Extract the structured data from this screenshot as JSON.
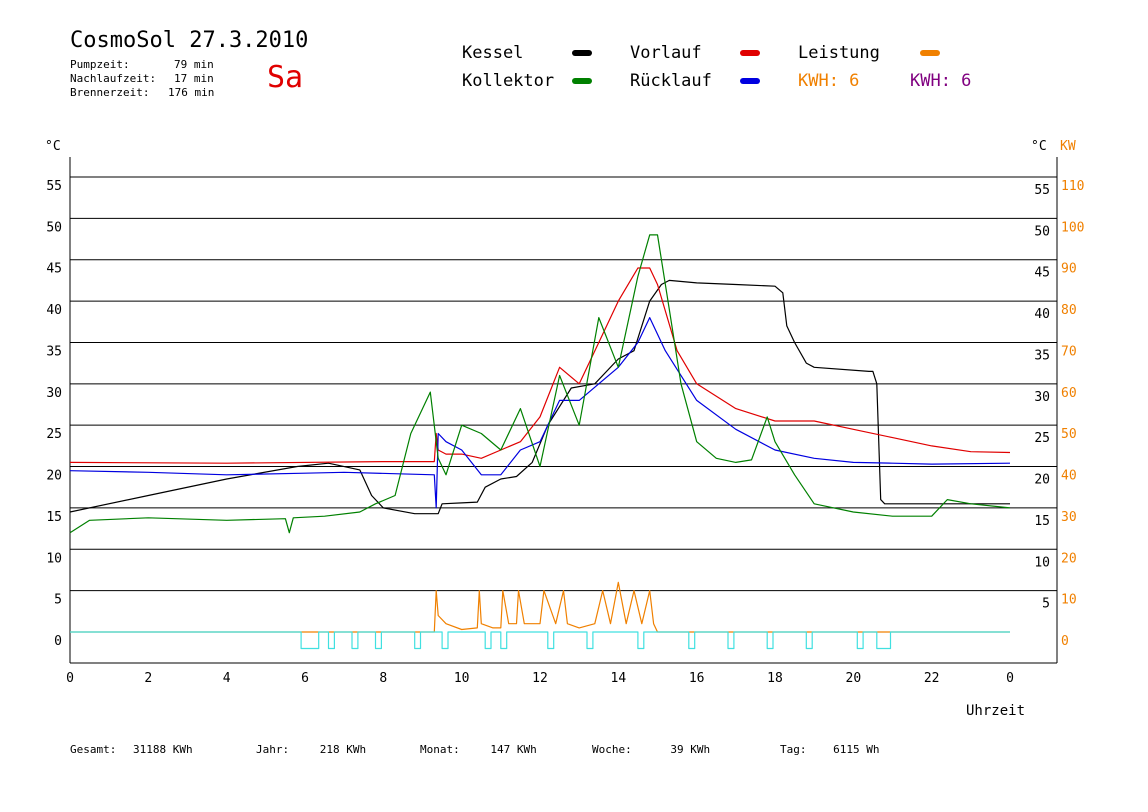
{
  "header": {
    "title": "CosmoSol 27.3.2010",
    "day": "Sa",
    "day_color": "#e00000",
    "meta": [
      {
        "label": "Pumpzeit:",
        "value": "79 min"
      },
      {
        "label": "Nachlaufzeit:",
        "value": "17 min"
      },
      {
        "label": "Brennerzeit:",
        "value": "176 min"
      }
    ]
  },
  "legend": {
    "kessel": {
      "label": "Kessel",
      "color": "#000000"
    },
    "vorlauf": {
      "label": "Vorlauf",
      "color": "#e00000"
    },
    "leistung": {
      "label": "Leistung",
      "color": "#f08000"
    },
    "kollektor": {
      "label": "Kollektor",
      "color": "#008000"
    },
    "ruecklauf": {
      "label": "Rücklauf",
      "color": "#0000e0"
    },
    "kwh_orange": {
      "label": "KWH: 6",
      "color": "#f08000"
    },
    "kwh_purple": {
      "label": "KWH: 6",
      "color": "#800080"
    }
  },
  "footer": [
    {
      "label": "Gesamt:",
      "value": "31188 KWh"
    },
    {
      "label": "Jahr:",
      "value": "218 KWh"
    },
    {
      "label": "Monat:",
      "value": "147 KWh"
    },
    {
      "label": "Woche:",
      "value": "39 KWh"
    },
    {
      "label": "Tag:",
      "value": "6115 Wh"
    }
  ],
  "chart_data": {
    "type": "line",
    "xlabel": "Uhrzeit",
    "y_left_unit": "°C",
    "y_right_unit_temp": "°C",
    "y_right_unit_power": "KW",
    "xlim": [
      0,
      24
    ],
    "ylim": [
      0,
      55
    ],
    "power_lim": [
      0,
      110
    ],
    "x_ticks": [
      "0",
      "2",
      "4",
      "6",
      "8",
      "10",
      "12",
      "14",
      "16",
      "18",
      "20",
      "22",
      "0"
    ],
    "y_ticks": [
      "0",
      "5",
      "10",
      "15",
      "20",
      "25",
      "30",
      "35",
      "40",
      "45",
      "50",
      "55"
    ],
    "y_right_ticks": [
      "",
      "5",
      "10",
      "15",
      "20",
      "25",
      "30",
      "35",
      "40",
      "45",
      "50",
      "55"
    ],
    "power_ticks": [
      "0",
      "10",
      "20",
      "30",
      "40",
      "50",
      "60",
      "70",
      "80",
      "90",
      "100",
      "110"
    ],
    "grid": true,
    "series": [
      {
        "name": "Kessel",
        "color": "#000000",
        "x": [
          0,
          2,
          4,
          5.8,
          6.6,
          7.4,
          7.7,
          8.0,
          8.8,
          9.4,
          9.5,
          10.0,
          10.4,
          10.6,
          11.0,
          11.4,
          11.8,
          12.2,
          12.8,
          13.4,
          14.0,
          14.4,
          14.8,
          15.1,
          15.3,
          16.0,
          17.0,
          18.0,
          18.2,
          18.3,
          18.5,
          18.8,
          19.0,
          20.4,
          20.5,
          20.6,
          20.7,
          20.8,
          21.0,
          22.0,
          24.0
        ],
        "y": [
          14.5,
          16.5,
          18.5,
          20,
          20.4,
          19.6,
          16.5,
          15,
          14.3,
          14.3,
          15.5,
          15.6,
          15.7,
          17.5,
          18.5,
          18.8,
          20.5,
          25,
          29.5,
          30,
          33,
          34,
          40,
          42,
          42.5,
          42.2,
          42,
          41.8,
          41,
          37,
          35,
          32.5,
          32,
          31.5,
          31.5,
          30,
          16,
          15.5,
          15.5,
          15.5,
          15.5
        ]
      },
      {
        "name": "Vorlauf",
        "color": "#e00000",
        "x": [
          0,
          4,
          8,
          9.3,
          9.35,
          9.4,
          9.6,
          10.0,
          10.5,
          11.0,
          11.5,
          12.0,
          12.5,
          13.0,
          13.5,
          14.0,
          14.5,
          14.8,
          15.0,
          15.5,
          16.0,
          17.0,
          18.0,
          19.0,
          20.0,
          21.0,
          22.0,
          23.0,
          24.0
        ],
        "y": [
          20.5,
          20.4,
          20.6,
          20.6,
          24,
          22,
          21.5,
          21.5,
          21,
          22,
          23,
          26,
          32,
          30,
          35,
          40,
          44,
          44,
          42,
          34,
          30,
          27,
          25.5,
          25.5,
          24.5,
          23.5,
          22.5,
          21.8,
          21.7
        ]
      },
      {
        "name": "Rücklauf",
        "color": "#0000e0",
        "x": [
          0,
          2,
          4,
          6,
          7,
          9.3,
          9.35,
          9.4,
          9.6,
          10.0,
          10.5,
          11.0,
          11.5,
          12.0,
          12.5,
          13.0,
          13.5,
          14.0,
          14.5,
          14.8,
          15.2,
          16.0,
          17.0,
          18.0,
          19.0,
          20.0,
          21.0,
          22.0,
          24.0
        ],
        "y": [
          19.5,
          19.3,
          19,
          19.2,
          19.3,
          19,
          15,
          24,
          23,
          22,
          19,
          19,
          22,
          23,
          28,
          28,
          30,
          32,
          35,
          38,
          34,
          28,
          24.5,
          22,
          21,
          20.5,
          20.4,
          20.3,
          20.4
        ]
      },
      {
        "name": "Kollektor",
        "color": "#008000",
        "x": [
          0,
          0.5,
          2,
          4,
          5.5,
          5.6,
          5.7,
          6.5,
          7.4,
          7.8,
          8.3,
          8.7,
          9.2,
          9.4,
          9.6,
          10.0,
          10.5,
          11.0,
          11.5,
          12.0,
          12.5,
          13.0,
          13.5,
          14.0,
          14.5,
          14.8,
          15.0,
          15.3,
          15.6,
          16.0,
          16.5,
          17.0,
          17.4,
          17.8,
          18.0,
          18.5,
          19.0,
          19.5,
          20.0,
          21.0,
          22.0,
          22.4,
          23.0,
          24.0
        ],
        "y": [
          12,
          13.5,
          13.8,
          13.5,
          13.7,
          12,
          13.8,
          14,
          14.5,
          15.5,
          16.5,
          24,
          29,
          21,
          19,
          25,
          24,
          22,
          27,
          20,
          31,
          25,
          38,
          32,
          43,
          48,
          48,
          39,
          30,
          23,
          21,
          20.5,
          20.8,
          26,
          23,
          19,
          15.5,
          15,
          14.5,
          14,
          14,
          16,
          15.5,
          15
        ]
      },
      {
        "name": "Leistung",
        "color": "#f08000",
        "x": [
          0,
          9.3,
          9.35,
          9.4,
          9.6,
          10.0,
          10.4,
          10.45,
          10.5,
          10.8,
          11.0,
          11.05,
          11.2,
          11.4,
          11.45,
          11.6,
          11.8,
          12.0,
          12.1,
          12.4,
          12.6,
          12.7,
          13.0,
          13.4,
          13.6,
          13.8,
          14.0,
          14.2,
          14.4,
          14.6,
          14.8,
          14.9,
          15.0,
          24.0
        ],
        "y": [
          0,
          0,
          5,
          2,
          1,
          0.3,
          0.5,
          5,
          1,
          0.5,
          0.5,
          5,
          1,
          1,
          5,
          1,
          1,
          1,
          5,
          1,
          5,
          1,
          0.5,
          1,
          5,
          1,
          6,
          1,
          5,
          1,
          5,
          1,
          0,
          0
        ]
      },
      {
        "name": "Brenner",
        "color": "#40e0e0",
        "x": [
          0,
          5.9,
          5.9,
          6.35,
          6.35,
          6.6,
          6.6,
          6.75,
          6.75,
          7.2,
          7.2,
          7.35,
          7.35,
          7.8,
          7.8,
          7.95,
          7.95,
          8.8,
          8.8,
          8.95,
          8.95,
          9.5,
          9.5,
          9.65,
          9.65,
          10.6,
          10.6,
          10.75,
          10.75,
          11.0,
          11.0,
          11.15,
          11.15,
          12.2,
          12.2,
          12.35,
          12.35,
          13.2,
          13.2,
          13.35,
          13.35,
          14.5,
          14.5,
          14.65,
          14.65,
          15.8,
          15.8,
          15.95,
          15.95,
          16.8,
          16.8,
          16.95,
          16.95,
          17.8,
          17.8,
          17.95,
          17.95,
          18.8,
          18.8,
          18.95,
          18.95,
          20.1,
          20.1,
          20.25,
          20.25,
          20.6,
          20.6,
          20.95,
          20.95,
          24.0
        ],
        "y": [
          0,
          0,
          -2,
          -2,
          0,
          0,
          -2,
          -2,
          0,
          0,
          -2,
          -2,
          0,
          0,
          -2,
          -2,
          0,
          0,
          -2,
          -2,
          0,
          0,
          -2,
          -2,
          0,
          0,
          -2,
          -2,
          0,
          0,
          -2,
          -2,
          0,
          0,
          -2,
          -2,
          0,
          0,
          -2,
          -2,
          0,
          0,
          -2,
          -2,
          0,
          0,
          -2,
          -2,
          0,
          0,
          -2,
          -2,
          0,
          0,
          -2,
          -2,
          0,
          0,
          -2,
          -2,
          0,
          0,
          -2,
          -2,
          0,
          0,
          -2,
          -2,
          0,
          0
        ]
      }
    ]
  }
}
